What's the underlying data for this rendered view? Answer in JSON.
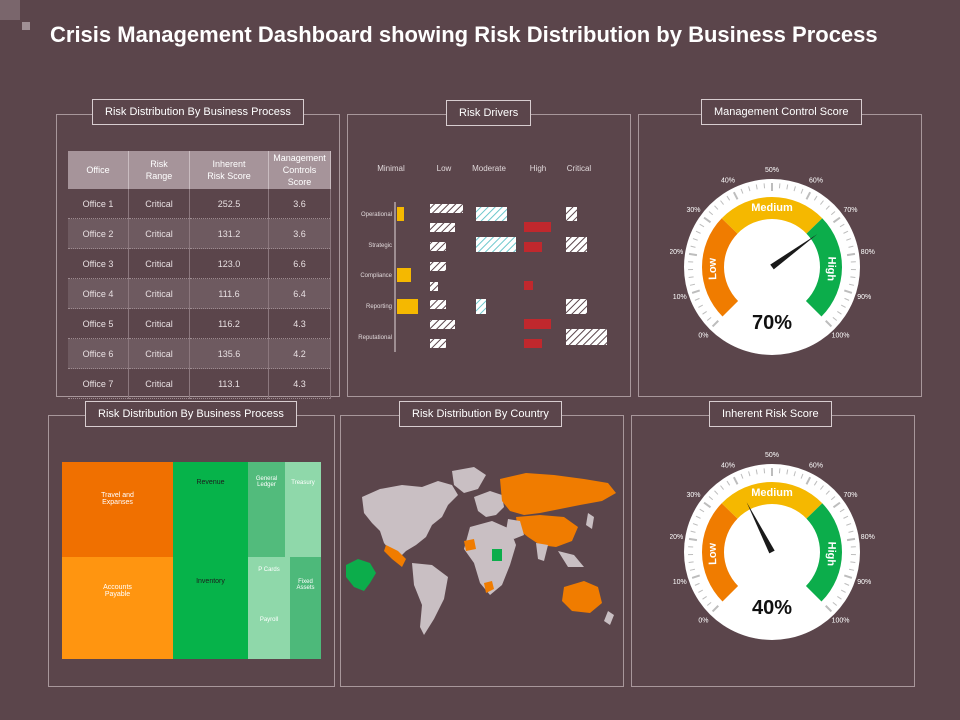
{
  "title": "Crisis Management Dashboard showing Risk Distribution by Business Process",
  "colors": {
    "background": "#5b454b",
    "low": "#f07c00",
    "medium": "#f5b800",
    "high": "#0cad4b",
    "critical": "#c0282d",
    "moderate": "#8fd3d6",
    "map_highlight": "#f07c00",
    "map_land": "#c9bfc3"
  },
  "panels": {
    "table_panel": "Risk Distribution By Business Process",
    "risk_drivers": "Risk Drivers",
    "management_control": "Management Control Score",
    "treemap_panel": "Risk Distribution By Business Process",
    "country": "Risk Distribution By Country",
    "inherent": "Inherent Risk Score"
  },
  "table": {
    "headers": [
      "Office",
      "Risk\nRange",
      "Inherent\nRisk Score",
      "Management\nControls Score"
    ],
    "rows": [
      [
        "Office 1",
        "Critical",
        "252.5",
        "3.6"
      ],
      [
        "Office 2",
        "Critical",
        "131.2",
        "3.6"
      ],
      [
        "Office 3",
        "Critical",
        "123.0",
        "6.6"
      ],
      [
        "Office 4",
        "Critical",
        "111.6",
        "6.4"
      ],
      [
        "Office 5",
        "Critical",
        "116.2",
        "4.3"
      ],
      [
        "Office 6",
        "Critical",
        "135.6",
        "4.2"
      ],
      [
        "Office 7",
        "Critical",
        "113.1",
        "4.3"
      ]
    ]
  },
  "risk_drivers": {
    "columns": [
      "Minimal",
      "Low",
      "Moderate",
      "High",
      "Critical"
    ],
    "groups": [
      "Operational",
      "Strategic",
      "Compliance",
      "Reporting",
      "Reputational"
    ]
  },
  "gauges": [
    {
      "value": 70,
      "display": "70%",
      "ticks": [
        "0%",
        "10%",
        "20%",
        "30%",
        "40%",
        "50%",
        "60%",
        "70%",
        "80%",
        "90%",
        "100%"
      ],
      "bands": [
        "Low",
        "Medium",
        "High"
      ]
    },
    {
      "value": 40,
      "display": "40%",
      "ticks": [
        "0%",
        "10%",
        "20%",
        "30%",
        "40%",
        "50%",
        "60%",
        "70%",
        "80%",
        "90%",
        "100%"
      ],
      "bands": [
        "Low",
        "Medium",
        "High"
      ]
    }
  ],
  "treemap": [
    {
      "label": "Travel and\nExpanses",
      "color": "#f07000"
    },
    {
      "label": "Accounts\nPayable",
      "color": "#ff9510"
    },
    {
      "label": "Revenue",
      "color": "#06b34a"
    },
    {
      "label": "Inventory",
      "color": "#06b34a"
    },
    {
      "label": "General\nLedger",
      "color": "#52bb7c"
    },
    {
      "label": "Treasury",
      "color": "#8fd8aa"
    },
    {
      "label": "P Cards",
      "color": "#8fd8aa"
    },
    {
      "label": "Payroll",
      "color": "#8fd8aa"
    },
    {
      "label": "Fixed\nAssets",
      "color": "#4db97a"
    }
  ]
}
